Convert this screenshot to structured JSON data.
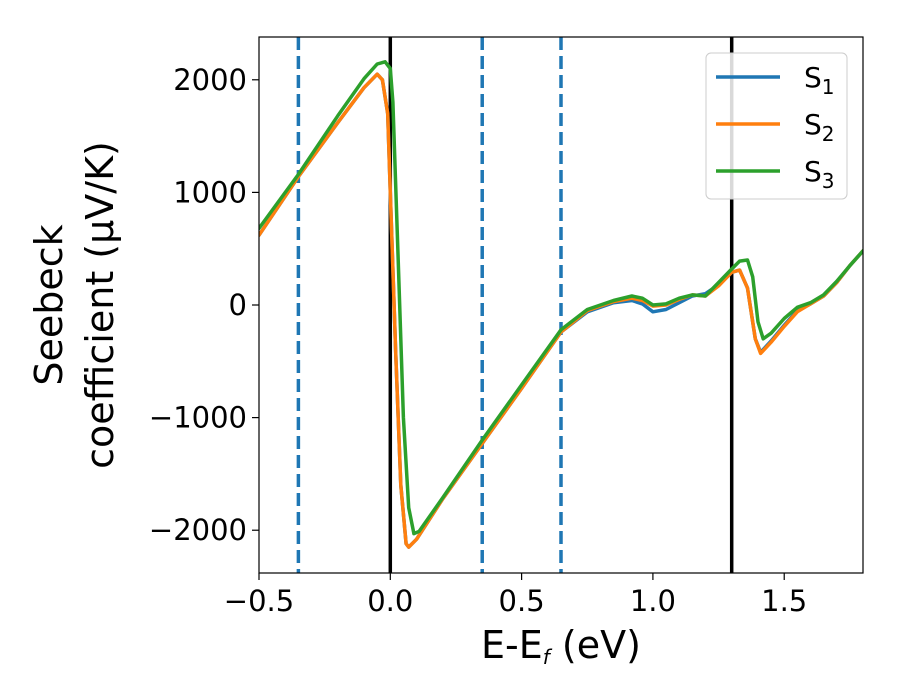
{
  "chart_data": {
    "type": "line",
    "title": "",
    "xlabel_main": "E-E",
    "xlabel_sub": "f",
    "xlabel_unit": " (eV)",
    "ylabel_line1": "Seebeck",
    "ylabel_line2": "coefficient  (μV/K)",
    "xlim": [
      -0.5,
      1.8
    ],
    "ylim": [
      -2380,
      2380
    ],
    "xticks": [
      -0.5,
      0.0,
      0.5,
      1.0,
      1.5
    ],
    "xtick_labels": [
      "−0.5",
      "0.0",
      "0.5",
      "1.0",
      "1.5"
    ],
    "yticks": [
      -2000,
      -1000,
      0,
      1000,
      2000
    ],
    "ytick_labels": [
      "−2000",
      "−1000",
      "0",
      "1000",
      "2000"
    ],
    "grid": false,
    "legend_position": "top-right",
    "vlines": [
      {
        "x": -0.35,
        "style": "dashed",
        "color": "#1f77b4"
      },
      {
        "x": 0.0,
        "style": "solid",
        "color": "#000000"
      },
      {
        "x": 0.35,
        "style": "dashed",
        "color": "#1f77b4"
      },
      {
        "x": 0.65,
        "style": "dashed",
        "color": "#1f77b4"
      },
      {
        "x": 1.3,
        "style": "solid",
        "color": "#000000"
      }
    ],
    "series": [
      {
        "name": "S",
        "sub": "1",
        "color": "#1f77b4",
        "points": [
          [
            -0.5,
            620
          ],
          [
            -0.35,
            1140
          ],
          [
            -0.2,
            1620
          ],
          [
            -0.1,
            1930
          ],
          [
            -0.05,
            2050
          ],
          [
            -0.03,
            2000
          ],
          [
            -0.01,
            1700
          ],
          [
            0.0,
            1000
          ],
          [
            0.02,
            -400
          ],
          [
            0.04,
            -1600
          ],
          [
            0.06,
            -2120
          ],
          [
            0.07,
            -2150
          ],
          [
            0.1,
            -2080
          ],
          [
            0.2,
            -1720
          ],
          [
            0.35,
            -1230
          ],
          [
            0.5,
            -740
          ],
          [
            0.65,
            -240
          ],
          [
            0.75,
            -60
          ],
          [
            0.85,
            20
          ],
          [
            0.92,
            40
          ],
          [
            0.96,
            10
          ],
          [
            1.0,
            -60
          ],
          [
            1.05,
            -40
          ],
          [
            1.1,
            20
          ],
          [
            1.15,
            80
          ],
          [
            1.2,
            100
          ],
          [
            1.25,
            180
          ],
          [
            1.3,
            290
          ],
          [
            1.33,
            310
          ],
          [
            1.36,
            150
          ],
          [
            1.39,
            -300
          ],
          [
            1.41,
            -420
          ],
          [
            1.45,
            -320
          ],
          [
            1.5,
            -180
          ],
          [
            1.55,
            -50
          ],
          [
            1.6,
            10
          ],
          [
            1.65,
            80
          ],
          [
            1.7,
            200
          ],
          [
            1.75,
            350
          ],
          [
            1.8,
            480
          ]
        ]
      },
      {
        "name": "S",
        "sub": "2",
        "color": "#ff7f0e",
        "points": [
          [
            -0.5,
            620
          ],
          [
            -0.35,
            1140
          ],
          [
            -0.2,
            1620
          ],
          [
            -0.1,
            1930
          ],
          [
            -0.05,
            2050
          ],
          [
            -0.03,
            2000
          ],
          [
            -0.01,
            1700
          ],
          [
            0.0,
            1000
          ],
          [
            0.02,
            -400
          ],
          [
            0.04,
            -1600
          ],
          [
            0.06,
            -2120
          ],
          [
            0.07,
            -2150
          ],
          [
            0.1,
            -2080
          ],
          [
            0.2,
            -1720
          ],
          [
            0.35,
            -1230
          ],
          [
            0.5,
            -740
          ],
          [
            0.65,
            -240
          ],
          [
            0.75,
            -50
          ],
          [
            0.85,
            30
          ],
          [
            0.92,
            60
          ],
          [
            0.96,
            40
          ],
          [
            1.0,
            -10
          ],
          [
            1.05,
            0
          ],
          [
            1.1,
            50
          ],
          [
            1.15,
            90
          ],
          [
            1.2,
            80
          ],
          [
            1.25,
            170
          ],
          [
            1.3,
            290
          ],
          [
            1.33,
            310
          ],
          [
            1.36,
            150
          ],
          [
            1.39,
            -300
          ],
          [
            1.41,
            -430
          ],
          [
            1.45,
            -330
          ],
          [
            1.5,
            -190
          ],
          [
            1.55,
            -60
          ],
          [
            1.6,
            10
          ],
          [
            1.65,
            80
          ],
          [
            1.7,
            200
          ],
          [
            1.75,
            350
          ],
          [
            1.8,
            480
          ]
        ]
      },
      {
        "name": "S",
        "sub": "3",
        "color": "#2ca02c",
        "points": [
          [
            -0.5,
            680
          ],
          [
            -0.35,
            1160
          ],
          [
            -0.2,
            1680
          ],
          [
            -0.1,
            2010
          ],
          [
            -0.05,
            2140
          ],
          [
            -0.02,
            2160
          ],
          [
            0.0,
            2100
          ],
          [
            0.01,
            1800
          ],
          [
            0.03,
            400
          ],
          [
            0.05,
            -1000
          ],
          [
            0.07,
            -1800
          ],
          [
            0.09,
            -2030
          ],
          [
            0.11,
            -2010
          ],
          [
            0.2,
            -1710
          ],
          [
            0.35,
            -1200
          ],
          [
            0.5,
            -710
          ],
          [
            0.65,
            -220
          ],
          [
            0.75,
            -40
          ],
          [
            0.85,
            40
          ],
          [
            0.92,
            80
          ],
          [
            0.96,
            60
          ],
          [
            1.0,
            0
          ],
          [
            1.05,
            10
          ],
          [
            1.1,
            60
          ],
          [
            1.15,
            90
          ],
          [
            1.2,
            80
          ],
          [
            1.25,
            200
          ],
          [
            1.3,
            320
          ],
          [
            1.33,
            390
          ],
          [
            1.36,
            400
          ],
          [
            1.38,
            250
          ],
          [
            1.4,
            -150
          ],
          [
            1.42,
            -300
          ],
          [
            1.45,
            -250
          ],
          [
            1.5,
            -120
          ],
          [
            1.55,
            -20
          ],
          [
            1.6,
            20
          ],
          [
            1.65,
            90
          ],
          [
            1.7,
            210
          ],
          [
            1.75,
            350
          ],
          [
            1.8,
            480
          ]
        ]
      }
    ]
  }
}
